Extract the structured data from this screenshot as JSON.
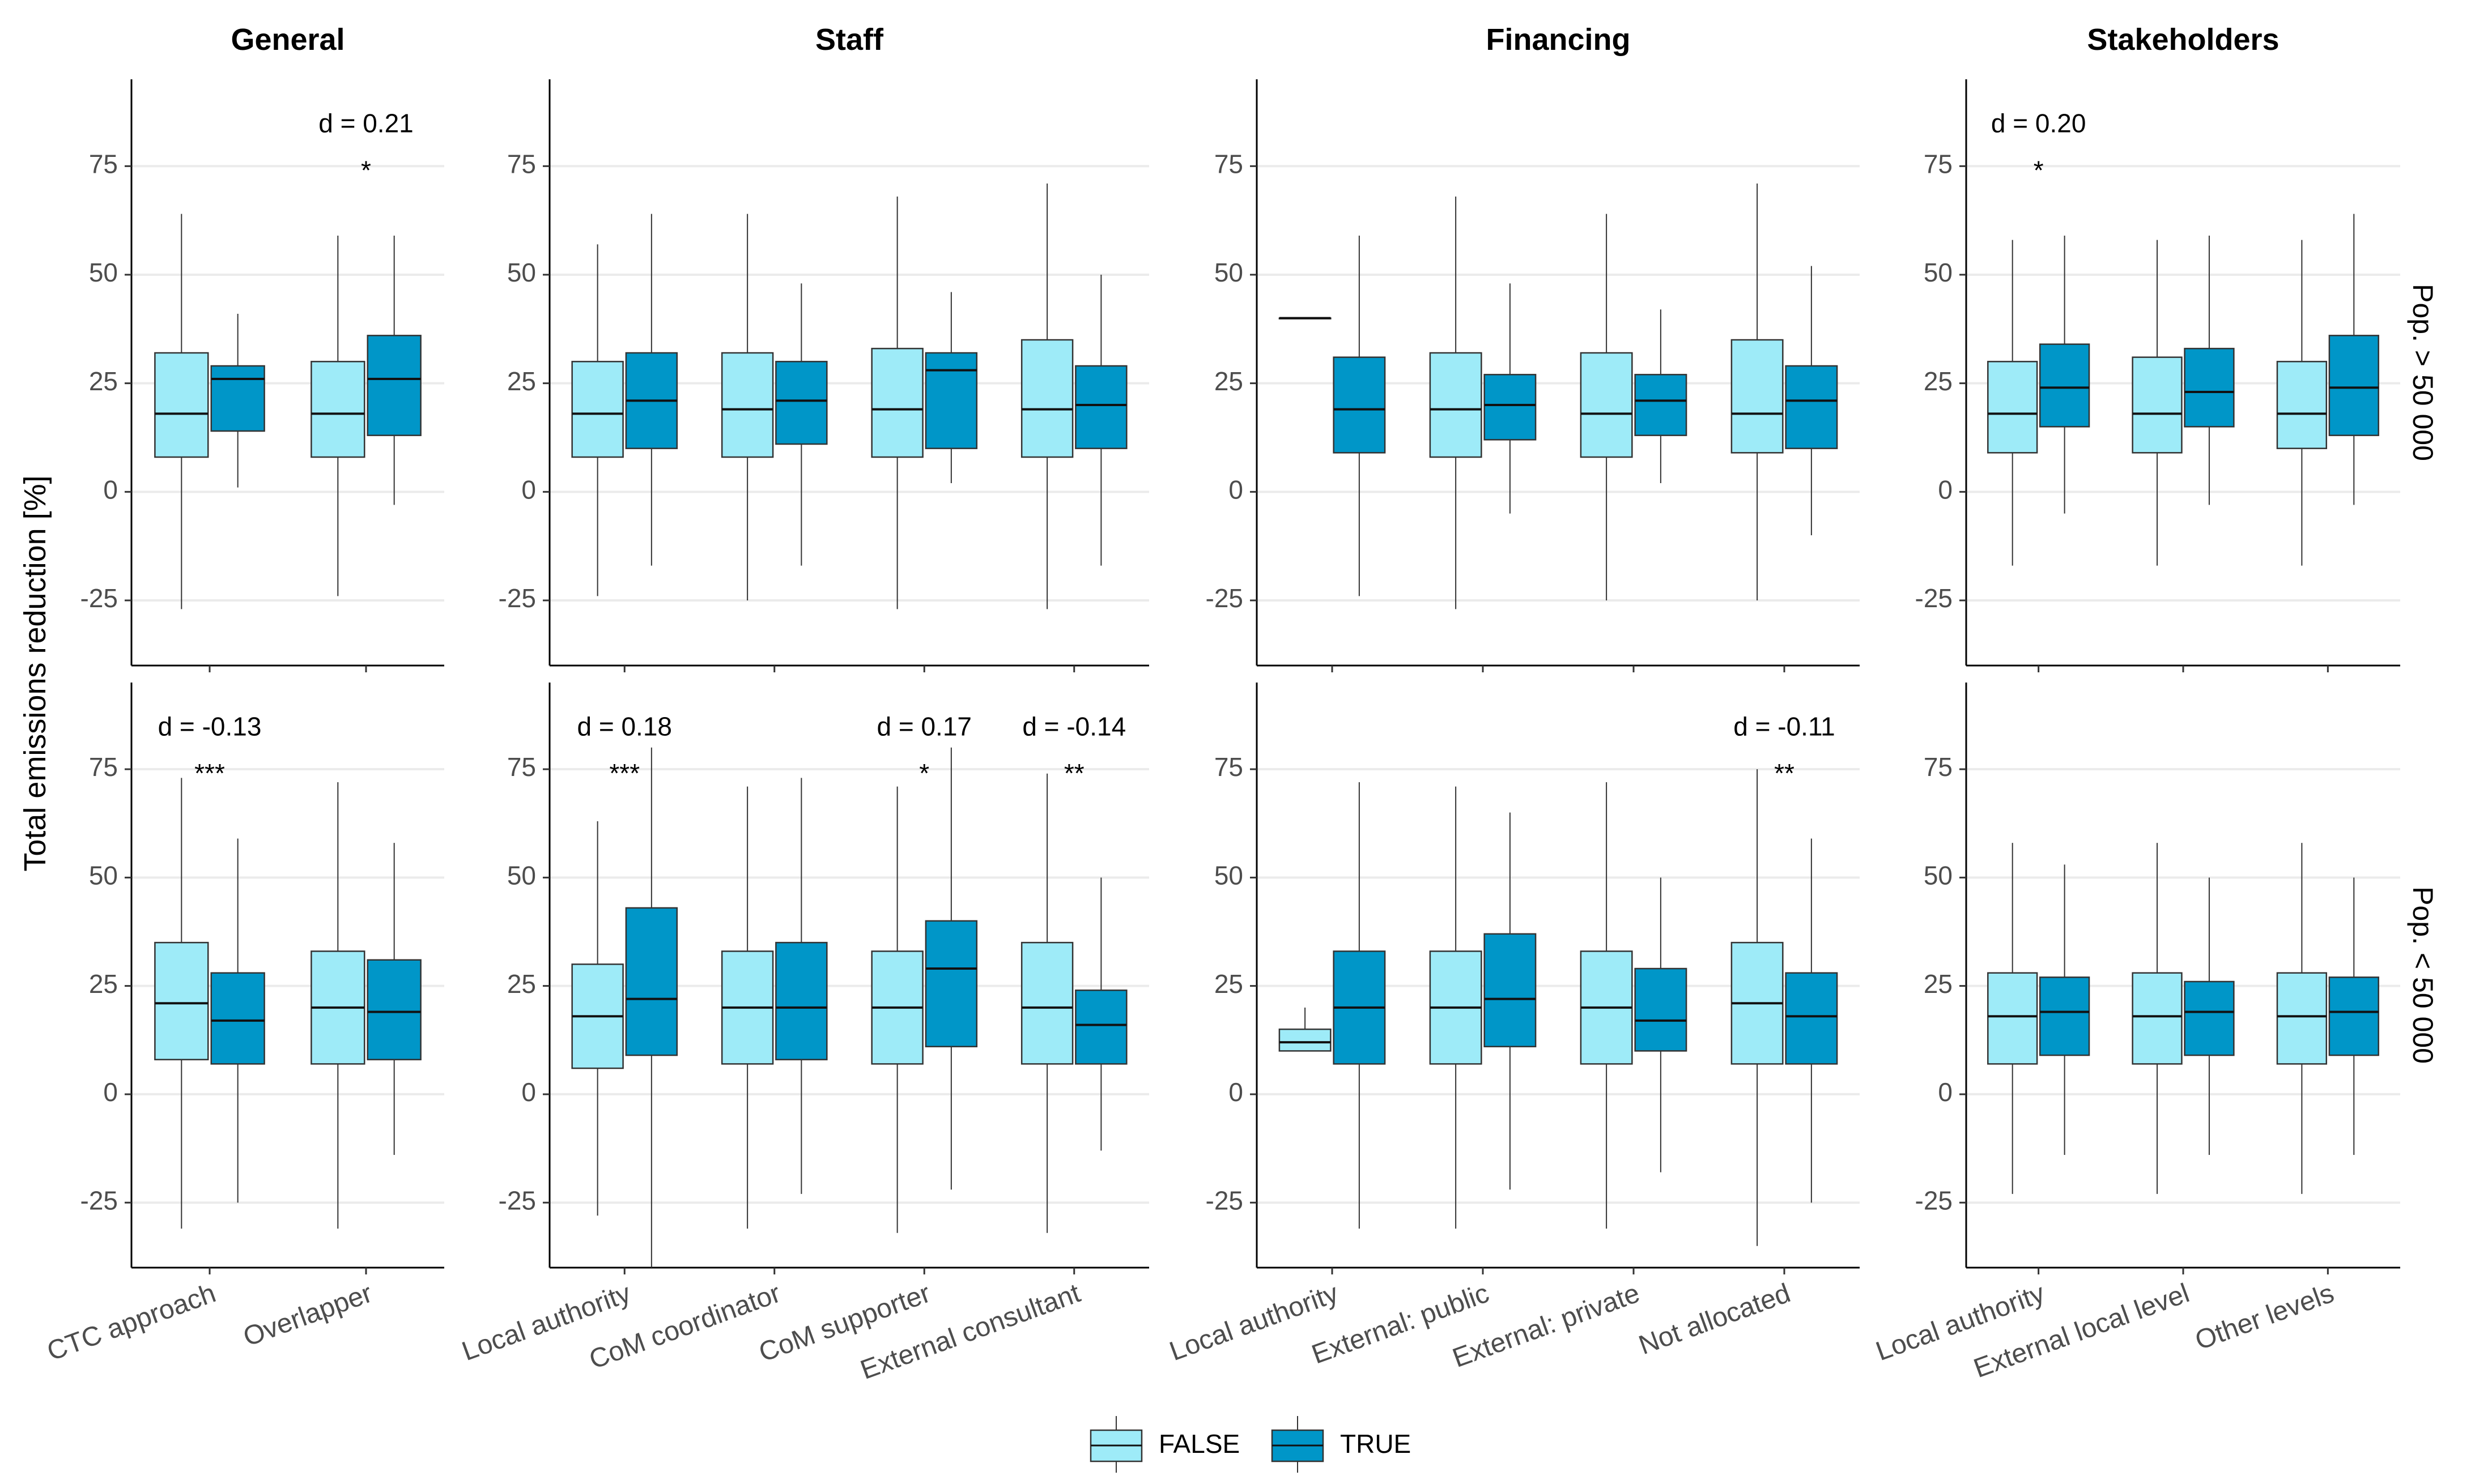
{
  "chart_data": {
    "type": "boxplot",
    "ylabel": "Total emissions reduction [%]",
    "ylim": [
      -40,
      95
    ],
    "yticks": [
      -25,
      0,
      25,
      50,
      75
    ],
    "grid": "horizontal",
    "legend": {
      "position": "bottom",
      "entries": [
        {
          "label": "FALSE",
          "color": "#9EEBF8"
        },
        {
          "label": "TRUE",
          "color": "#0096C8"
        }
      ]
    },
    "colors": {
      "false": "#9EEBF8",
      "true": "#0096C8",
      "grid": "#EBEBEB"
    },
    "rows": [
      "Pop. > 50 000",
      "Pop. < 50 000"
    ],
    "panels": [
      {
        "title": "General",
        "categories": [
          "CTC approach",
          "Overlapper"
        ],
        "rows": [
          {
            "groups": [
              {
                "false": [
                  -27,
                  8,
                  18,
                  32,
                  64
                ],
                "true": [
                  1,
                  14,
                  26,
                  29,
                  41
                ],
                "d": "",
                "sig": ""
              },
              {
                "false": [
                  -24,
                  8,
                  18,
                  30,
                  59
                ],
                "true": [
                  -3,
                  13,
                  26,
                  36,
                  59
                ],
                "d": "d = 0.21",
                "sig": "*"
              }
            ]
          },
          {
            "groups": [
              {
                "false": [
                  -31,
                  8,
                  21,
                  35,
                  73
                ],
                "true": [
                  -25,
                  7,
                  17,
                  28,
                  59
                ],
                "d": "d = -0.13",
                "sig": "***"
              },
              {
                "false": [
                  -31,
                  7,
                  20,
                  33,
                  72
                ],
                "true": [
                  -14,
                  8,
                  19,
                  31,
                  58
                ],
                "d": "",
                "sig": ""
              }
            ]
          }
        ]
      },
      {
        "title": "Staff",
        "categories": [
          "Local authority",
          "CoM coordinator",
          "CoM supporter",
          "External consultant"
        ],
        "rows": [
          {
            "groups": [
              {
                "false": [
                  -24,
                  8,
                  18,
                  30,
                  57
                ],
                "true": [
                  -17,
                  10,
                  21,
                  32,
                  64
                ],
                "d": "",
                "sig": ""
              },
              {
                "false": [
                  -25,
                  8,
                  19,
                  32,
                  64
                ],
                "true": [
                  -17,
                  11,
                  21,
                  30,
                  48
                ],
                "d": "",
                "sig": ""
              },
              {
                "false": [
                  -27,
                  8,
                  19,
                  33,
                  68
                ],
                "true": [
                  2,
                  10,
                  28,
                  32,
                  46
                ],
                "d": "",
                "sig": ""
              },
              {
                "false": [
                  -27,
                  8,
                  19,
                  35,
                  71
                ],
                "true": [
                  -17,
                  10,
                  20,
                  29,
                  50
                ],
                "d": "",
                "sig": ""
              }
            ]
          },
          {
            "groups": [
              {
                "false": [
                  -28,
                  6,
                  18,
                  30,
                  63
                ],
                "true": [
                  -40,
                  9,
                  22,
                  43,
                  80
                ],
                "d": "d = 0.18",
                "sig": "***"
              },
              {
                "false": [
                  -31,
                  7,
                  20,
                  33,
                  71
                ],
                "true": [
                  -23,
                  8,
                  20,
                  35,
                  73
                ],
                "d": "",
                "sig": ""
              },
              {
                "false": [
                  -32,
                  7,
                  20,
                  33,
                  71
                ],
                "true": [
                  -22,
                  11,
                  29,
                  40,
                  80
                ],
                "d": "d = 0.17",
                "sig": "*"
              },
              {
                "false": [
                  -32,
                  7,
                  20,
                  35,
                  74
                ],
                "true": [
                  -13,
                  7,
                  16,
                  24,
                  50
                ],
                "d": "d = -0.14",
                "sig": "**"
              }
            ]
          }
        ]
      },
      {
        "title": "Financing",
        "categories": [
          "Local authority",
          "External: public",
          "External: private",
          "Not allocated"
        ],
        "rows": [
          {
            "groups": [
              {
                "false": [
                  40,
                  40,
                  40,
                  40,
                  40
                ],
                "true": [
                  -24,
                  9,
                  19,
                  31,
                  59
                ],
                "d": "",
                "sig": ""
              },
              {
                "false": [
                  -27,
                  8,
                  19,
                  32,
                  68
                ],
                "true": [
                  -5,
                  12,
                  20,
                  27,
                  48
                ],
                "d": "",
                "sig": ""
              },
              {
                "false": [
                  -25,
                  8,
                  18,
                  32,
                  64
                ],
                "true": [
                  2,
                  13,
                  21,
                  27,
                  42
                ],
                "d": "",
                "sig": ""
              },
              {
                "false": [
                  -25,
                  9,
                  18,
                  35,
                  71
                ],
                "true": [
                  -10,
                  10,
                  21,
                  29,
                  52
                ],
                "d": "",
                "sig": ""
              }
            ]
          },
          {
            "groups": [
              {
                "false": [
                  10,
                  10,
                  12,
                  15,
                  20
                ],
                "true": [
                  -31,
                  7,
                  20,
                  33,
                  72
                ],
                "d": "",
                "sig": ""
              },
              {
                "false": [
                  -31,
                  7,
                  20,
                  33,
                  71
                ],
                "true": [
                  -22,
                  11,
                  22,
                  37,
                  65
                ],
                "d": "",
                "sig": ""
              },
              {
                "false": [
                  -31,
                  7,
                  20,
                  33,
                  72
                ],
                "true": [
                  -18,
                  10,
                  17,
                  29,
                  50
                ],
                "d": "",
                "sig": ""
              },
              {
                "false": [
                  -35,
                  7,
                  21,
                  35,
                  75
                ],
                "true": [
                  -25,
                  7,
                  18,
                  28,
                  59
                ],
                "d": "d = -0.11",
                "sig": "**"
              }
            ]
          }
        ]
      },
      {
        "title": "Stakeholders",
        "categories": [
          "Local authority",
          "External local level",
          "Other levels"
        ],
        "rows": [
          {
            "groups": [
              {
                "false": [
                  -17,
                  9,
                  18,
                  30,
                  58
                ],
                "true": [
                  -5,
                  15,
                  24,
                  34,
                  59
                ],
                "d": "d = 0.20",
                "sig": "*"
              },
              {
                "false": [
                  -17,
                  9,
                  18,
                  31,
                  58
                ],
                "true": [
                  -3,
                  15,
                  23,
                  33,
                  59
                ],
                "d": "",
                "sig": ""
              },
              {
                "false": [
                  -17,
                  10,
                  18,
                  30,
                  58
                ],
                "true": [
                  -3,
                  13,
                  24,
                  36,
                  64
                ],
                "d": "",
                "sig": ""
              }
            ]
          },
          {
            "groups": [
              {
                "false": [
                  -23,
                  7,
                  18,
                  28,
                  58
                ],
                "true": [
                  -14,
                  9,
                  19,
                  27,
                  53
                ],
                "d": "",
                "sig": ""
              },
              {
                "false": [
                  -23,
                  7,
                  18,
                  28,
                  58
                ],
                "true": [
                  -14,
                  9,
                  19,
                  26,
                  50
                ],
                "d": "",
                "sig": ""
              },
              {
                "false": [
                  -23,
                  7,
                  18,
                  28,
                  58
                ],
                "true": [
                  -14,
                  9,
                  19,
                  27,
                  50
                ],
                "d": "",
                "sig": ""
              }
            ]
          }
        ]
      }
    ]
  }
}
